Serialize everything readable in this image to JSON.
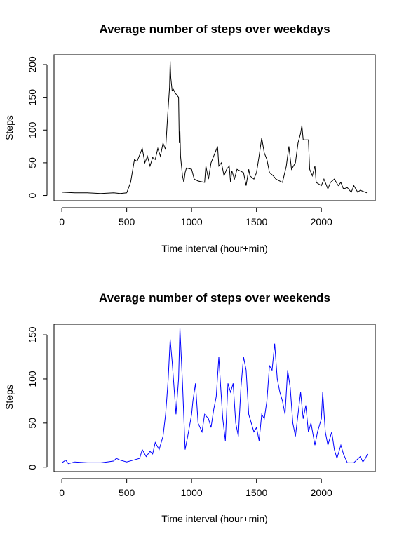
{
  "chart_data": [
    {
      "type": "line",
      "title": "Average number of steps over weekdays",
      "xlabel": "Time interval (hour+min)",
      "ylabel": "Steps",
      "xlim": [
        -60,
        2415
      ],
      "ylim": [
        -8,
        215
      ],
      "xticks": [
        "0",
        "500",
        "1000",
        "1500",
        "2000"
      ],
      "yticks": [
        "0",
        "50",
        "100",
        "150",
        "200"
      ],
      "grid": false,
      "color": "#000000",
      "x": [
        0,
        100,
        200,
        300,
        400,
        450,
        500,
        530,
        560,
        580,
        600,
        620,
        640,
        660,
        680,
        700,
        720,
        740,
        760,
        780,
        800,
        815,
        830,
        835,
        840,
        850,
        860,
        870,
        880,
        900,
        905,
        910,
        915,
        920,
        930,
        940,
        950,
        960,
        1000,
        1020,
        1050,
        1100,
        1110,
        1130,
        1150,
        1200,
        1210,
        1230,
        1250,
        1270,
        1290,
        1300,
        1310,
        1330,
        1350,
        1400,
        1420,
        1440,
        1450,
        1480,
        1500,
        1520,
        1540,
        1560,
        1580,
        1600,
        1630,
        1650,
        1700,
        1730,
        1750,
        1770,
        1800,
        1820,
        1840,
        1850,
        1860,
        1900,
        1910,
        1930,
        1950,
        1960,
        2000,
        2020,
        2050,
        2070,
        2100,
        2130,
        2150,
        2170,
        2200,
        2230,
        2250,
        2280,
        2300,
        2350
      ],
      "y": [
        5,
        4,
        4,
        3,
        4,
        3,
        4,
        20,
        55,
        52,
        62,
        72,
        50,
        60,
        45,
        58,
        55,
        72,
        60,
        80,
        70,
        120,
        165,
        205,
        180,
        160,
        162,
        158,
        155,
        150,
        80,
        100,
        60,
        50,
        30,
        20,
        35,
        42,
        40,
        25,
        22,
        20,
        45,
        25,
        50,
        75,
        45,
        50,
        30,
        40,
        45,
        20,
        38,
        25,
        40,
        35,
        15,
        40,
        30,
        25,
        35,
        60,
        88,
        65,
        55,
        35,
        30,
        25,
        20,
        45,
        75,
        40,
        50,
        80,
        95,
        107,
        85,
        85,
        40,
        30,
        45,
        20,
        15,
        25,
        10,
        20,
        25,
        15,
        20,
        10,
        12,
        5,
        15,
        5,
        8,
        4
      ]
    },
    {
      "type": "line",
      "title": "Average number of steps over weekends",
      "xlabel": "Time interval (hour+min)",
      "ylabel": "Steps",
      "xlim": [
        -60,
        2415
      ],
      "ylim": [
        -5,
        162
      ],
      "xticks": [
        "0",
        "500",
        "1000",
        "1500",
        "2000"
      ],
      "yticks": [
        "0",
        "50",
        "100",
        "150"
      ],
      "grid": false,
      "color": "#0000ff",
      "x": [
        0,
        30,
        50,
        100,
        200,
        300,
        350,
        400,
        420,
        450,
        500,
        550,
        600,
        620,
        650,
        680,
        700,
        720,
        750,
        780,
        800,
        810,
        820,
        835,
        850,
        870,
        880,
        900,
        910,
        930,
        950,
        970,
        1000,
        1010,
        1030,
        1050,
        1080,
        1100,
        1130,
        1150,
        1170,
        1190,
        1210,
        1220,
        1240,
        1260,
        1280,
        1300,
        1320,
        1340,
        1360,
        1380,
        1400,
        1420,
        1440,
        1460,
        1480,
        1500,
        1520,
        1540,
        1560,
        1580,
        1600,
        1620,
        1640,
        1660,
        1680,
        1700,
        1720,
        1740,
        1760,
        1780,
        1800,
        1820,
        1840,
        1860,
        1880,
        1900,
        1920,
        1950,
        1970,
        2000,
        2010,
        2030,
        2050,
        2080,
        2100,
        2120,
        2150,
        2170,
        2200,
        2250,
        2270,
        2300,
        2320,
        2340,
        2355
      ],
      "y": [
        5,
        8,
        4,
        6,
        5,
        5,
        6,
        7,
        10,
        8,
        6,
        8,
        10,
        20,
        12,
        18,
        15,
        28,
        20,
        35,
        60,
        80,
        100,
        145,
        120,
        80,
        60,
        100,
        158,
        95,
        20,
        35,
        60,
        75,
        95,
        50,
        40,
        60,
        55,
        45,
        65,
        80,
        125,
        100,
        55,
        30,
        95,
        85,
        95,
        50,
        35,
        90,
        125,
        110,
        60,
        50,
        40,
        45,
        30,
        60,
        55,
        75,
        115,
        110,
        140,
        100,
        85,
        75,
        60,
        110,
        90,
        50,
        35,
        60,
        85,
        55,
        70,
        40,
        50,
        25,
        40,
        55,
        85,
        40,
        25,
        40,
        20,
        10,
        25,
        15,
        5,
        5,
        8,
        12,
        6,
        10,
        15
      ]
    }
  ]
}
